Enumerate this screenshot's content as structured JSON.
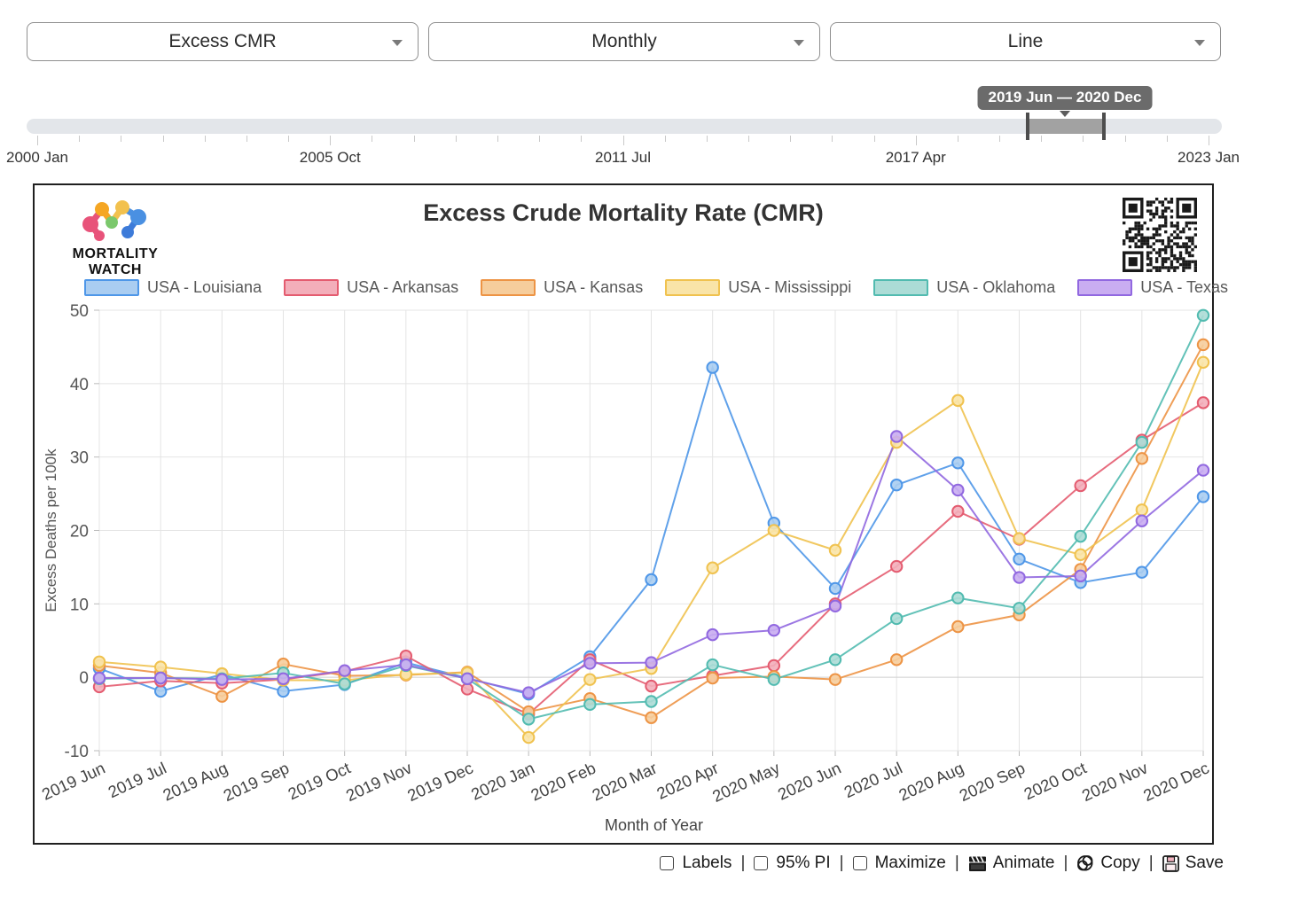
{
  "controls": {
    "metric": "Excess CMR",
    "period": "Monthly",
    "chart_type": "Line"
  },
  "timeline": {
    "range_label": "2019 Jun — 2020 Dec",
    "selection": {
      "start": "2019 Jun",
      "end": "2020 Dec"
    },
    "axis_labels": [
      "2000 Jan",
      "2005 Oct",
      "2011 Jul",
      "2017 Apr",
      "2023 Jan"
    ]
  },
  "brand": {
    "line1": "MORTALITY",
    "line2": "WATCH",
    "qr_icon": "qr-code"
  },
  "chart_data": {
    "type": "line",
    "title": "Excess Crude Mortality Rate (CMR)",
    "xlabel": "Month of Year",
    "ylabel": "Excess Deaths per 100k",
    "ylim": [
      -10,
      50
    ],
    "yticks": [
      50,
      40,
      30,
      20,
      10,
      0,
      -10
    ],
    "grid": true,
    "legend_position": "top",
    "categories": [
      "2019 Jun",
      "2019 Jul",
      "2019 Aug",
      "2019 Sep",
      "2019 Oct",
      "2019 Nov",
      "2019 Dec",
      "2020 Jan",
      "2020 Feb",
      "2020 Mar",
      "2020 Apr",
      "2020 May",
      "2020 Jun",
      "2020 Jul",
      "2020 Aug",
      "2020 Sep",
      "2020 Oct",
      "2020 Nov",
      "2020 Dec"
    ],
    "series": [
      {
        "name": "USA - Louisiana",
        "color": "#4F97E8",
        "fill": "#AACDF1",
        "values": [
          1.2,
          -1.9,
          0.4,
          -1.9,
          -1.0,
          2.0,
          -0.1,
          -2.3,
          2.8,
          13.3,
          42.2,
          21.0,
          12.1,
          26.2,
          29.2,
          16.1,
          12.9,
          14.3,
          24.6
        ]
      },
      {
        "name": "USA - Arkansas",
        "color": "#E45C70",
        "fill": "#F3AEBA",
        "values": [
          -1.3,
          -0.5,
          -0.8,
          -0.3,
          0.8,
          2.9,
          -1.6,
          -5.0,
          2.4,
          -1.2,
          0.2,
          1.6,
          10.0,
          15.1,
          22.6,
          18.8,
          26.1,
          32.3,
          37.4
        ]
      },
      {
        "name": "USA - Kansas",
        "color": "#ED9445",
        "fill": "#F6CD9C",
        "values": [
          1.6,
          0.6,
          -2.6,
          1.8,
          0.2,
          0.3,
          0.7,
          -4.7,
          -2.9,
          -5.5,
          -0.1,
          0.1,
          -0.3,
          2.4,
          6.9,
          8.5,
          14.7,
          29.8,
          45.3
        ]
      },
      {
        "name": "USA - Mississippi",
        "color": "#F0C24F",
        "fill": "#F9E4A8",
        "values": [
          2.1,
          1.4,
          0.5,
          -0.4,
          -0.4,
          0.4,
          0.6,
          -8.2,
          -0.3,
          1.2,
          14.9,
          20.0,
          17.3,
          32.0,
          37.7,
          18.9,
          16.7,
          22.8,
          42.9
        ]
      },
      {
        "name": "USA - Oklahoma",
        "color": "#52BBB0",
        "fill": "#ACDCD6",
        "values": [
          -0.2,
          -0.1,
          -0.2,
          0.6,
          -0.9,
          1.6,
          -0.2,
          -5.7,
          -3.7,
          -3.3,
          1.7,
          -0.3,
          2.4,
          8.0,
          10.8,
          9.4,
          19.2,
          32.0,
          49.3
        ]
      },
      {
        "name": "USA - Texas",
        "color": "#9168E0",
        "fill": "#C9ADF1",
        "values": [
          -0.1,
          -0.1,
          -0.3,
          -0.2,
          0.9,
          1.7,
          -0.2,
          -2.1,
          1.9,
          2.0,
          5.8,
          6.4,
          9.7,
          32.8,
          25.5,
          13.6,
          13.8,
          21.3,
          28.2
        ]
      }
    ]
  },
  "footer": {
    "checkboxes": [
      {
        "label": "Labels",
        "checked": false
      },
      {
        "label": "95% PI",
        "checked": false
      },
      {
        "label": "Maximize",
        "checked": false
      }
    ],
    "buttons": [
      {
        "label": "Animate",
        "icon": "clapperboard-icon"
      },
      {
        "label": "Copy",
        "icon": "paperclip-icon"
      },
      {
        "label": "Save",
        "icon": "floppy-disk-icon"
      }
    ]
  }
}
